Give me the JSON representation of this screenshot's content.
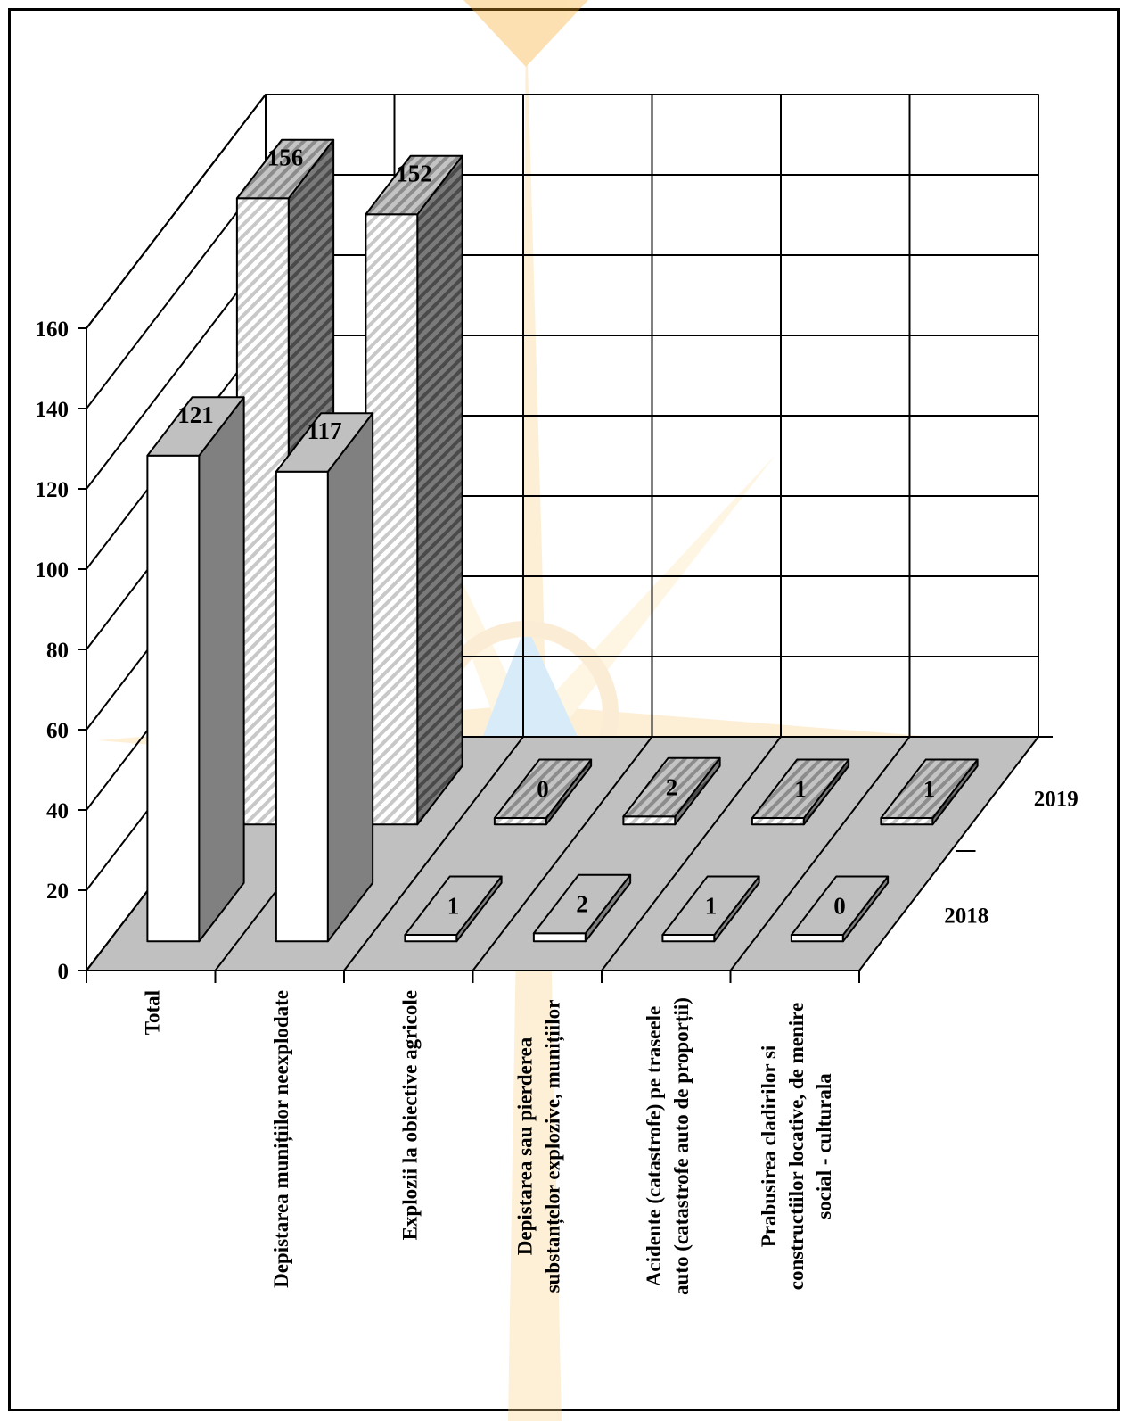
{
  "chart_data": {
    "type": "bar",
    "title": "",
    "xlabel": "",
    "ylabel": "",
    "ylim": [
      0,
      160
    ],
    "yticks": [
      0,
      20,
      40,
      60,
      80,
      100,
      120,
      140,
      160
    ],
    "grid": true,
    "legend": "right",
    "categories": [
      "Total",
      "Depistarea munițiilor neexplodate",
      "Explozii la obiective agricole",
      "Depistarea sau pierderea substanțelor explozive, munițiilor",
      "Acidente (catastrofe) pe traseele auto (catastrofe auto de proporții)",
      "Prabusirea cladirilor si constructiilor locative, de menire social - culturala"
    ],
    "series": [
      {
        "name": "2018",
        "values": [
          121,
          117,
          1,
          2,
          1,
          0
        ]
      },
      {
        "name": "2019",
        "values": [
          156,
          152,
          0,
          2,
          1,
          1
        ]
      }
    ],
    "colors": {
      "background_emblem": "#f9a825",
      "floor": "#c0c0c0",
      "front_2018": "#ffffff",
      "side_2018": "#808080",
      "top": "#c0c0c0",
      "side_2019": "#707070"
    }
  }
}
